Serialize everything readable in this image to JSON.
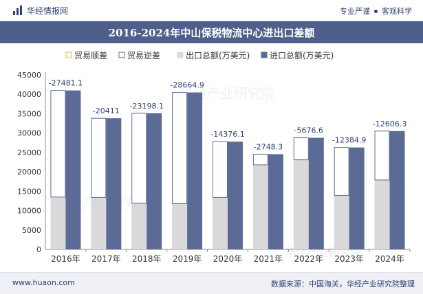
{
  "header": {
    "brand": "华经情报网",
    "slogan_left": "专业严谨",
    "slogan_right": "客观科学"
  },
  "footer": {
    "website": "www.huaon.com",
    "source": "数据来源：中国海关，华经产业研究院整理"
  },
  "watermark": "华经产业研究院",
  "colors": {
    "title_bg": "#4e5f8c",
    "import": "#5b6b96",
    "export": "#d9d9db",
    "deficit_outline": "#5b6b96",
    "surplus_outline": "#e4b84a",
    "text": "#2f3f73"
  },
  "chart_data": {
    "type": "bar",
    "title": "2016-2024年中山保税物流中心进出口差额",
    "categories": [
      "2016年",
      "2017年",
      "2018年",
      "2019年",
      "2020年",
      "2021年",
      "2022年",
      "2023年",
      "2024年"
    ],
    "legend": [
      "贸易顺差",
      "贸易逆差",
      "出口总额(万美元)",
      "进口总额(万美元)"
    ],
    "series": [
      {
        "name": "出口总额(万美元)",
        "values": [
          13500,
          13400,
          11900,
          11800,
          13400,
          21800,
          23100,
          13900,
          17900
        ]
      },
      {
        "name": "进口总额(万美元)",
        "values": [
          40981,
          33811,
          35098,
          40465,
          27776,
          24548,
          28777,
          26285,
          30506
        ]
      },
      {
        "name": "贸易逆差",
        "values": [
          -27481.1,
          -20411,
          -23198.1,
          -28664.9,
          -14376.1,
          -2748.3,
          -5676.6,
          -12384.9,
          -12606.3
        ]
      }
    ],
    "data_labels": [
      "-27481.1",
      "-20411",
      "-23198.1",
      "-28664.9",
      "-14376.1",
      "-2748.3",
      "-5676.6",
      "-12384.9",
      "-12606.3"
    ],
    "ylim": [
      0,
      45000
    ],
    "yticks": [
      "0",
      "5000",
      "10000",
      "15000",
      "20000",
      "25000",
      "30000",
      "35000",
      "40000",
      "45000"
    ],
    "grid": false,
    "legend_position": "top"
  }
}
